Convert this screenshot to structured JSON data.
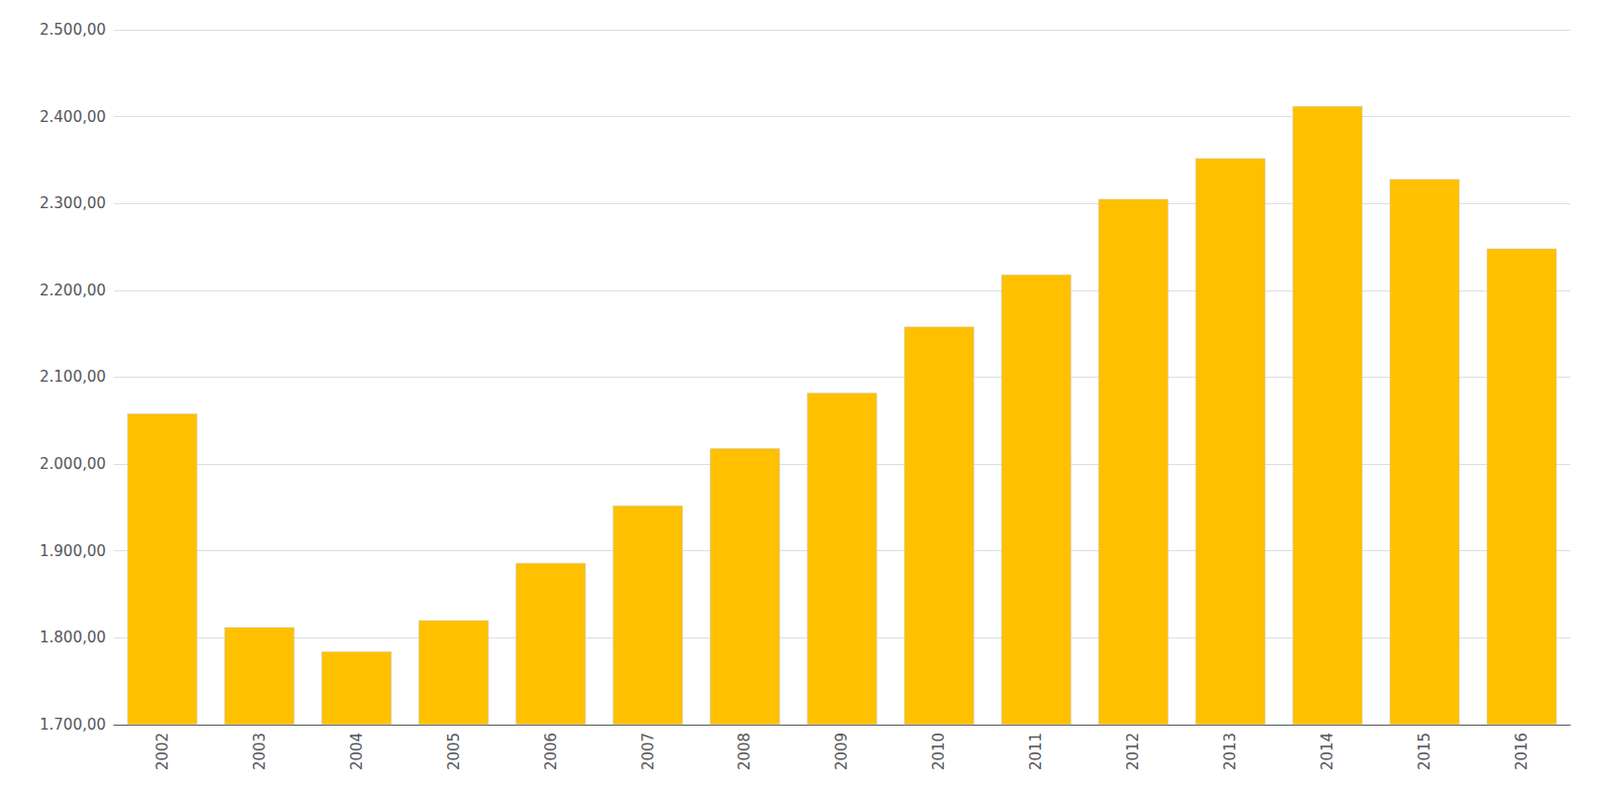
{
  "chart_data": {
    "type": "bar",
    "categories": [
      "2002",
      "2003",
      "2004",
      "2005",
      "2006",
      "2007",
      "2008",
      "2009",
      "2010",
      "2011",
      "2012",
      "2013",
      "2014",
      "2015",
      "2016"
    ],
    "values": [
      2058,
      1812,
      1784,
      1820,
      1886,
      1952,
      2018,
      2082,
      2158,
      2218,
      2305,
      2352,
      2412,
      2328,
      2248
    ],
    "color": "#FFC000",
    "ylim": [
      1700,
      2500
    ],
    "yticks": [
      {
        "value": 1700,
        "label": "1.700,00"
      },
      {
        "value": 1800,
        "label": "1.800,00"
      },
      {
        "value": 1900,
        "label": "1.900,00"
      },
      {
        "value": 2000,
        "label": "2.000,00"
      },
      {
        "value": 2100,
        "label": "2.100,00"
      },
      {
        "value": 2200,
        "label": "2.200,00"
      },
      {
        "value": 2300,
        "label": "2.300,00"
      },
      {
        "value": 2400,
        "label": "2.400,00"
      },
      {
        "value": 2500,
        "label": "2.500,00"
      }
    ],
    "grid": true
  }
}
